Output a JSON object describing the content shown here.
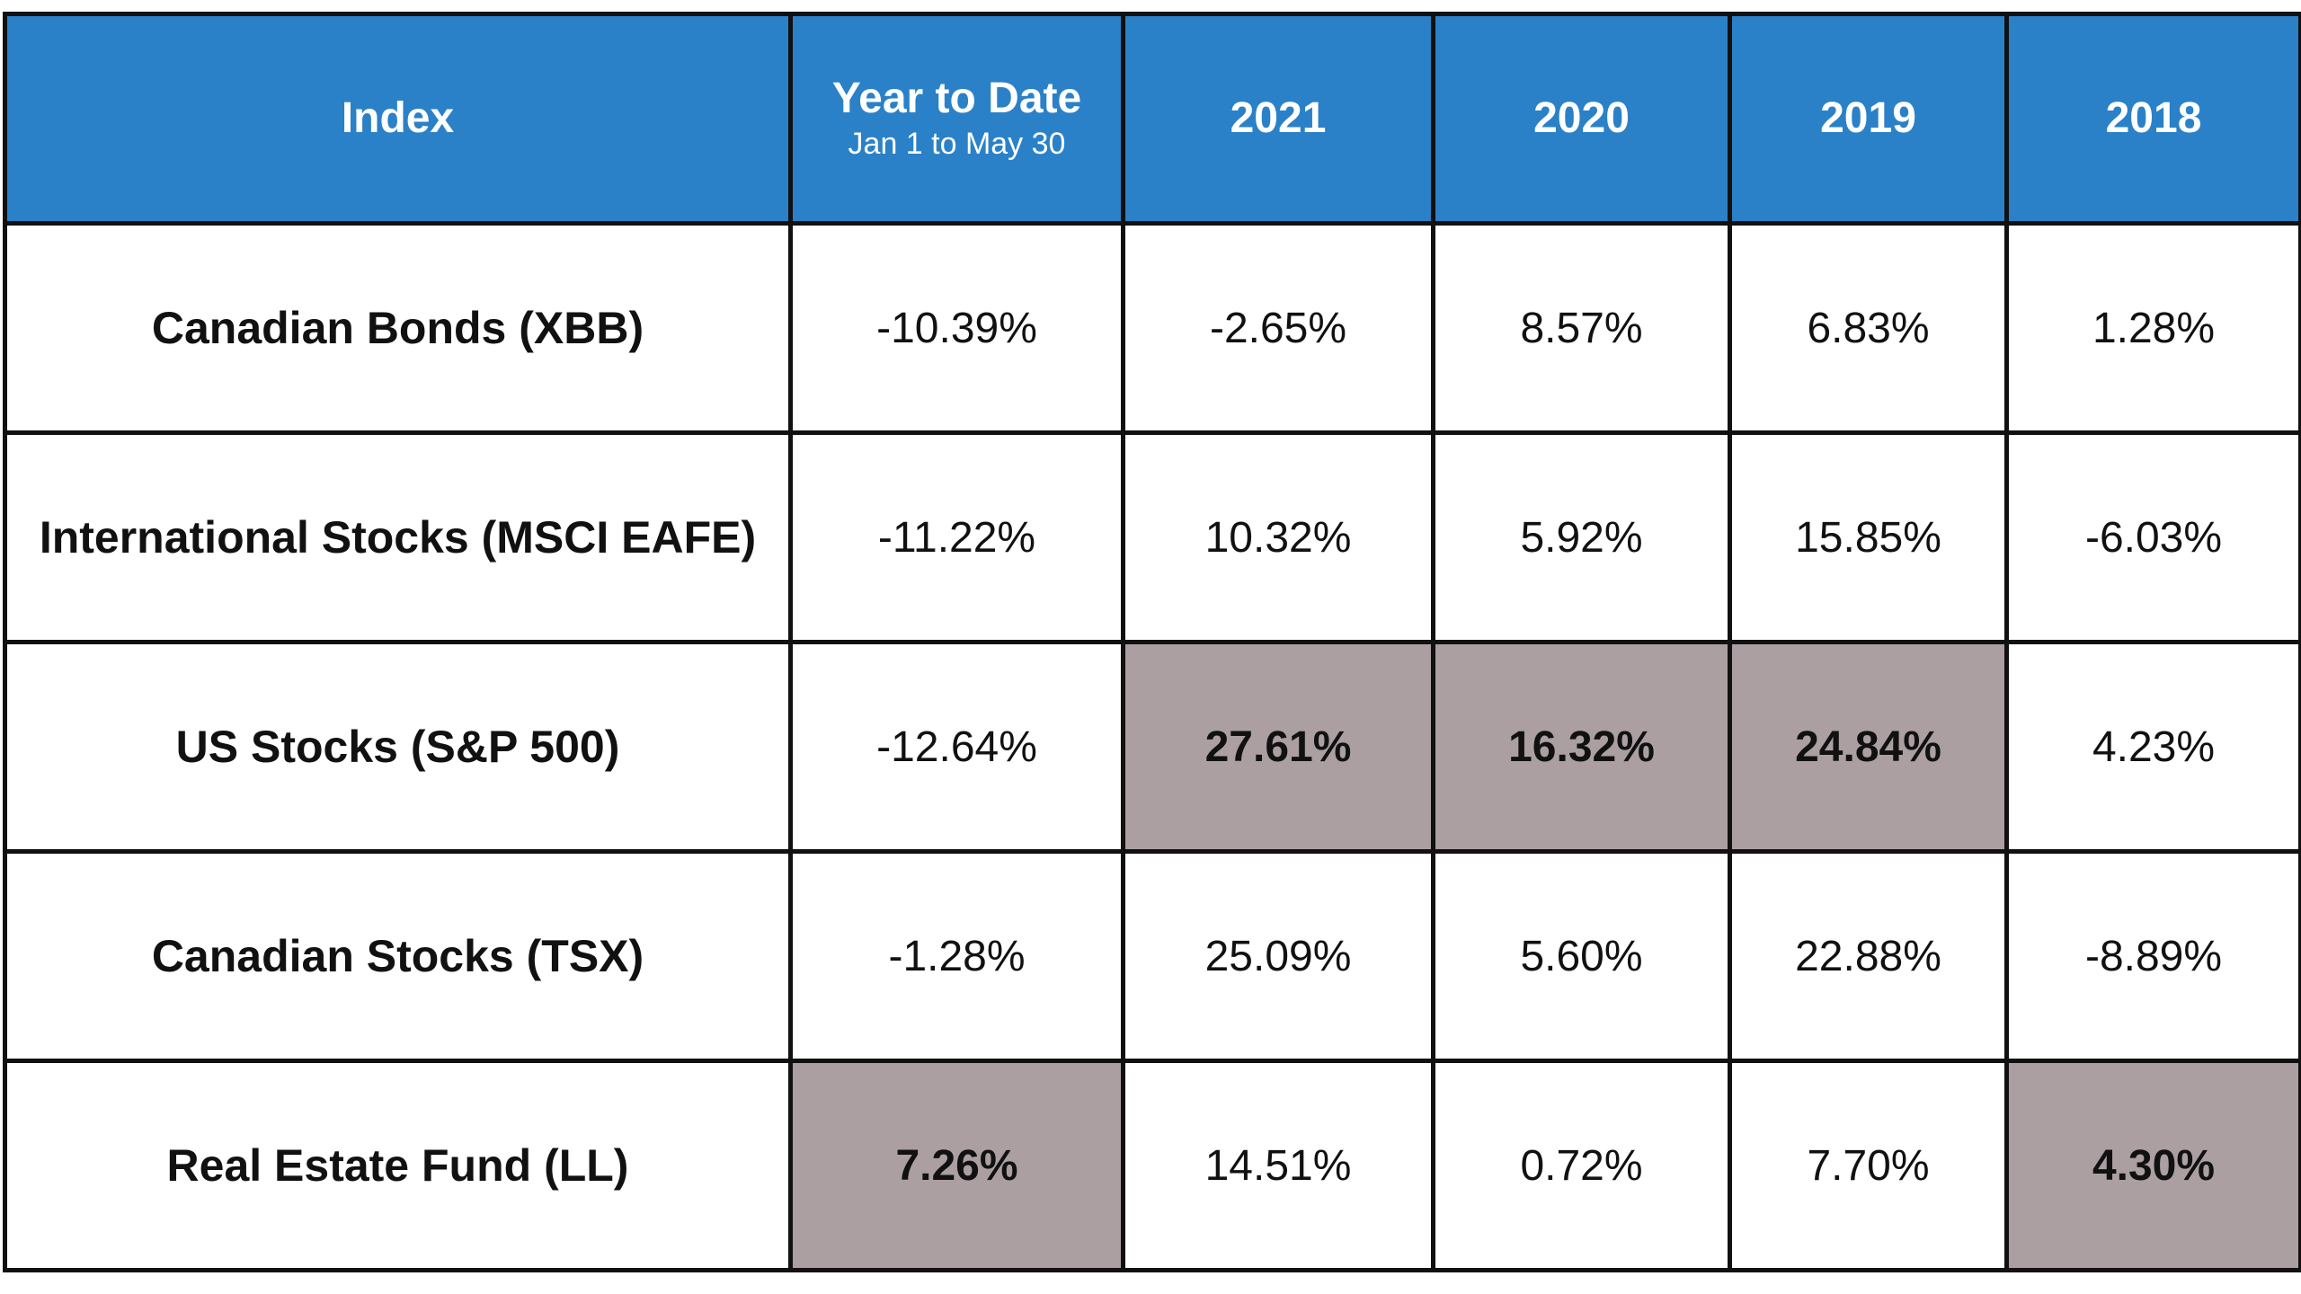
{
  "chart_data": {
    "type": "table",
    "columns": [
      {
        "label": "Index",
        "sublabel": ""
      },
      {
        "label": "Year to Date",
        "sublabel": "Jan 1 to May 30"
      },
      {
        "label": "2021",
        "sublabel": ""
      },
      {
        "label": "2020",
        "sublabel": ""
      },
      {
        "label": "2019",
        "sublabel": ""
      },
      {
        "label": "2018",
        "sublabel": ""
      }
    ],
    "rows": [
      {
        "label": "Canadian Bonds (XBB)",
        "cells": [
          {
            "text": "-10.39%",
            "value": -10.39,
            "highlight": false
          },
          {
            "text": "-2.65%",
            "value": -2.65,
            "highlight": false
          },
          {
            "text": "8.57%",
            "value": 8.57,
            "highlight": false
          },
          {
            "text": "6.83%",
            "value": 6.83,
            "highlight": false
          },
          {
            "text": "1.28%",
            "value": 1.28,
            "highlight": false
          }
        ]
      },
      {
        "label": "International Stocks (MSCI EAFE)",
        "cells": [
          {
            "text": "-11.22%",
            "value": -11.22,
            "highlight": false
          },
          {
            "text": "10.32%",
            "value": 10.32,
            "highlight": false
          },
          {
            "text": "5.92%",
            "value": 5.92,
            "highlight": false
          },
          {
            "text": "15.85%",
            "value": 15.85,
            "highlight": false
          },
          {
            "text": "-6.03%",
            "value": -6.03,
            "highlight": false
          }
        ]
      },
      {
        "label": "US Stocks (S&P 500)",
        "cells": [
          {
            "text": "-12.64%",
            "value": -12.64,
            "highlight": false
          },
          {
            "text": "27.61%",
            "value": 27.61,
            "highlight": true
          },
          {
            "text": "16.32%",
            "value": 16.32,
            "highlight": true
          },
          {
            "text": "24.84%",
            "value": 24.84,
            "highlight": true
          },
          {
            "text": "4.23%",
            "value": 4.23,
            "highlight": false
          }
        ]
      },
      {
        "label": "Canadian Stocks (TSX)",
        "cells": [
          {
            "text": "-1.28%",
            "value": -1.28,
            "highlight": false
          },
          {
            "text": "25.09%",
            "value": 25.09,
            "highlight": false
          },
          {
            "text": "5.60%",
            "value": 5.6,
            "highlight": false
          },
          {
            "text": "22.88%",
            "value": 22.88,
            "highlight": false
          },
          {
            "text": "-8.89%",
            "value": -8.89,
            "highlight": false
          }
        ]
      },
      {
        "label": "Real Estate Fund (LL)",
        "cells": [
          {
            "text": "7.26%",
            "value": 7.26,
            "highlight": true
          },
          {
            "text": "14.51%",
            "value": 14.51,
            "highlight": false
          },
          {
            "text": "0.72%",
            "value": 0.72,
            "highlight": false
          },
          {
            "text": "7.70%",
            "value": 7.7,
            "highlight": false
          },
          {
            "text": "4.30%",
            "value": 4.3,
            "highlight": true
          }
        ]
      }
    ]
  },
  "colors": {
    "header_background": "#2a81c8",
    "header_text": "#ffffff",
    "highlight_background": "#ab9fa2",
    "border": "#111111",
    "cell_background": "#ffffff",
    "cell_text": "#111111"
  }
}
